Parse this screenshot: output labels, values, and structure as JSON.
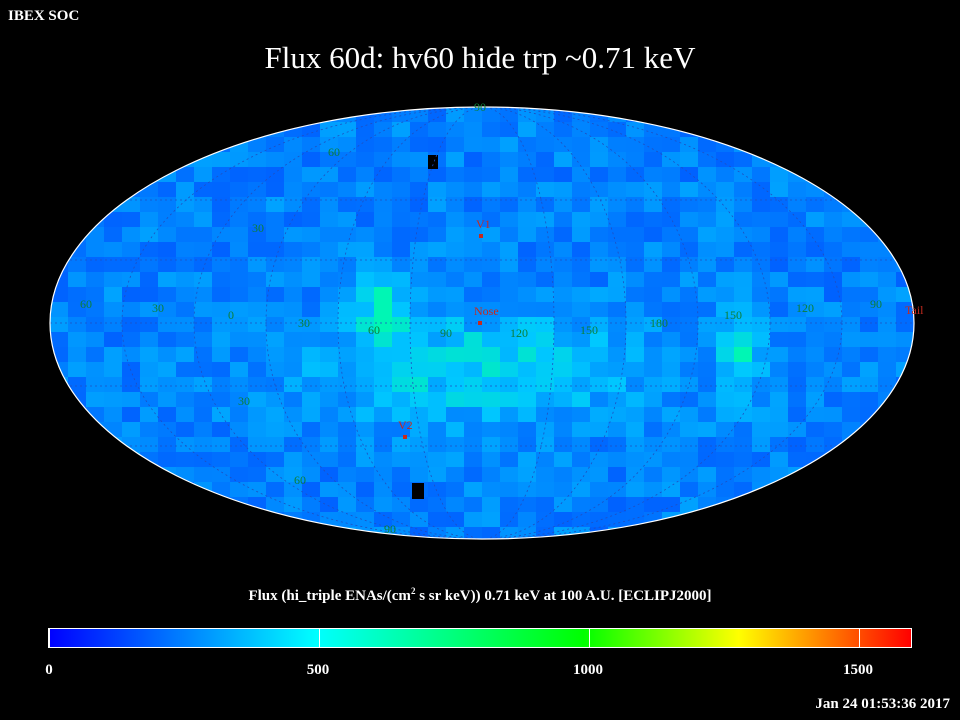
{
  "brand": "IBEX SOC",
  "title": "Flux   60d: hv60 hide trp ~0.71 keV",
  "colorbar": {
    "label_pre": "Flux (hi_triple ENAs/(cm",
    "label_sup": "2",
    "label_post": " s sr keV))  0.71 keV at 100 A.U. [ECLIPJ2000]",
    "min": 0,
    "max": 1600,
    "ticks": [
      "0",
      "500",
      "1000",
      "1500"
    ],
    "tick_values": [
      0,
      500,
      1000,
      1500
    ]
  },
  "timestamp": "Jan 24 01:53:36 2017",
  "map": {
    "projection": "Mollweide",
    "frame": "ECLIPJ2000",
    "grid_labels_lat": [
      "90",
      "60",
      "30",
      "30",
      "60",
      "90"
    ],
    "grid_labels_lon": [
      "60",
      "30",
      "0",
      "30",
      "60",
      "90",
      "120",
      "150",
      "180",
      "150",
      "120",
      "90",
      "60"
    ],
    "markers": [
      {
        "name": "V1"
      },
      {
        "name": "Nose"
      },
      {
        "name": "V2"
      },
      {
        "name": "Tail"
      }
    ]
  }
}
